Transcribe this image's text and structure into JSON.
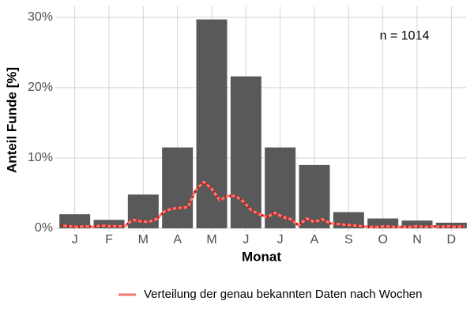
{
  "chart_data": {
    "type": "bar",
    "annotation": "n = 1014",
    "x_label": "Monat",
    "y_label": "Anteil Funde [%]",
    "categories": [
      "J",
      "F",
      "M",
      "A",
      "M",
      "J",
      "J",
      "A",
      "S",
      "O",
      "N",
      "D"
    ],
    "values": [
      2.0,
      1.2,
      4.8,
      11.5,
      29.7,
      21.6,
      11.5,
      9.0,
      2.3,
      1.4,
      1.1,
      0.8
    ],
    "color": "#595959",
    "ylim": [
      0,
      31
    ],
    "yticks": [
      {
        "value": 0,
        "label": "0%"
      },
      {
        "value": 10,
        "label": "10%"
      },
      {
        "value": 20,
        "label": "20%"
      },
      {
        "value": 30,
        "label": "30%"
      }
    ],
    "grid": true,
    "legend": "bottom",
    "series": [
      {
        "name": "Verteilung der genau bekannten Daten nach Wochen",
        "type": "line",
        "color": "#f8766d",
        "dot_color": "#cc0000",
        "x": [
          1,
          2,
          3,
          4,
          5,
          6,
          7,
          8,
          9,
          10,
          11,
          12,
          13,
          14,
          15,
          16,
          17,
          18,
          19,
          20,
          21,
          22,
          23,
          24,
          25,
          26,
          27,
          28,
          29,
          30,
          31,
          32,
          33,
          34,
          35,
          36,
          37,
          38,
          39,
          40,
          41,
          42,
          43,
          44,
          45,
          46,
          47,
          48,
          49,
          50,
          51,
          52
        ],
        "values": [
          0.4,
          0.3,
          0.2,
          0.3,
          0.2,
          0.4,
          0.3,
          0.3,
          0.3,
          1.2,
          1.0,
          0.9,
          1.3,
          2.4,
          2.8,
          2.9,
          3.0,
          5.5,
          6.6,
          5.6,
          4.0,
          4.6,
          4.6,
          3.8,
          2.6,
          2.0,
          1.6,
          2.2,
          1.6,
          1.3,
          0.4,
          1.4,
          0.9,
          1.3,
          0.7,
          0.6,
          0.5,
          0.4,
          0.3,
          0.2,
          0.2,
          0.3,
          0.2,
          0.2,
          0.2,
          0.3,
          0.2,
          0.3,
          0.2,
          0.3,
          0.2,
          0.3
        ]
      }
    ]
  }
}
